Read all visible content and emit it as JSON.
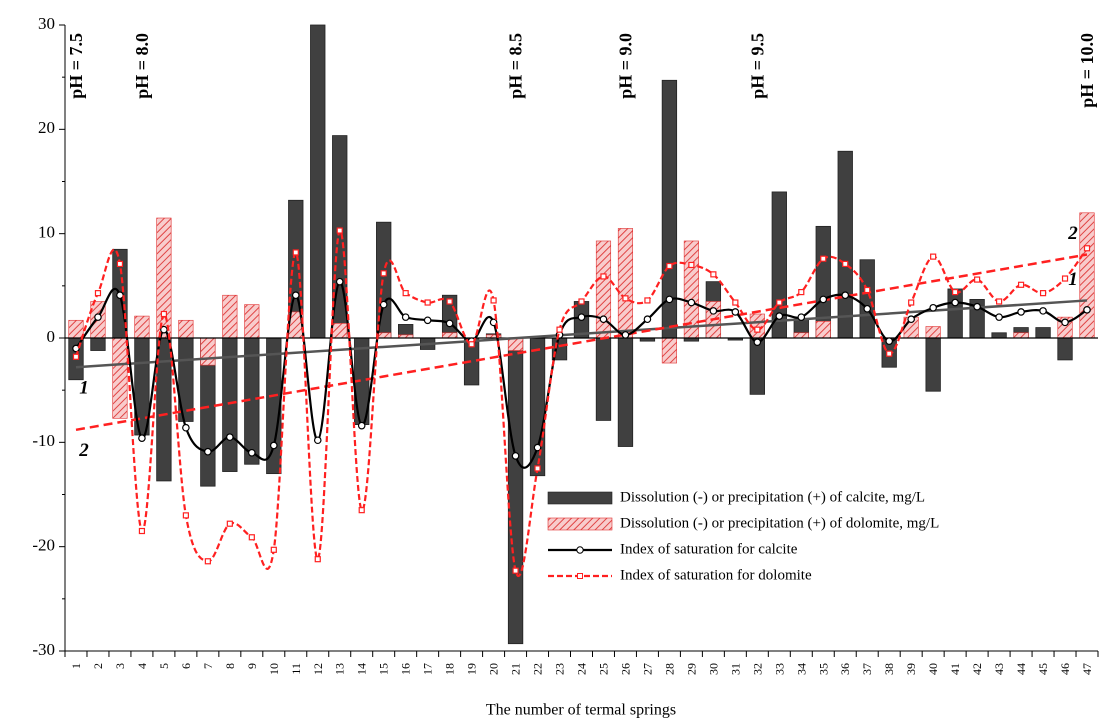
{
  "chart_data": {
    "type": "combo",
    "x_label": "The number of termal springs",
    "categories": [
      "1",
      "2",
      "3",
      "4",
      "5",
      "6",
      "7",
      "8",
      "9",
      "10",
      "11",
      "12",
      "13",
      "14",
      "15",
      "16",
      "17",
      "18",
      "19",
      "20",
      "21",
      "22",
      "23",
      "24",
      "25",
      "26",
      "27",
      "28",
      "29",
      "30",
      "31",
      "32",
      "33",
      "34",
      "35",
      "36",
      "37",
      "38",
      "39",
      "40",
      "41",
      "42",
      "43",
      "44",
      "45",
      "46",
      "47"
    ],
    "ylim": [
      -30,
      30
    ],
    "yticks": [
      -30,
      -20,
      -10,
      0,
      10,
      20,
      30
    ],
    "minor_yticks": [
      -25,
      -15,
      -5,
      5,
      15,
      25
    ],
    "legend": "lower right",
    "series": [
      {
        "name": "Dissolution (-) or precipitation (+) of calcite, mg/L",
        "kind": "bar",
        "color": "#404040",
        "values": [
          -4,
          -1.2,
          8.5,
          -9.3,
          -13.7,
          -8,
          -14.2,
          -12.8,
          -12.1,
          -13,
          13.2,
          30,
          19.4,
          -8.3,
          11.1,
          1.3,
          -1.1,
          4.1,
          -4.5,
          0.4,
          -29.3,
          -13.2,
          -2.1,
          3.5,
          -7.9,
          -10.4,
          -0.3,
          24.7,
          -0.3,
          5.4,
          -0.2,
          -5.4,
          14,
          1.8,
          10.7,
          17.9,
          7.5,
          -2.8,
          0,
          -5.1,
          4.7,
          3.7,
          0.5,
          1,
          1,
          -2.1,
          0
        ]
      },
      {
        "name": "Dissolution (-) or precipitation (+) of dolomite, mg/L",
        "kind": "bar",
        "hatched": true,
        "color": "#e03030",
        "values": [
          1.7,
          3.5,
          -7.7,
          2.1,
          11.5,
          1.7,
          -2.6,
          4.1,
          3.2,
          0,
          2.5,
          0,
          1.4,
          0,
          0.5,
          0.3,
          0,
          0.5,
          0,
          0.3,
          -1.2,
          0,
          0,
          0,
          9.3,
          10.5,
          0,
          -2.4,
          9.3,
          3.5,
          0,
          2.3,
          0,
          0.5,
          1.6,
          0,
          0,
          0,
          2,
          1.1,
          0,
          0,
          0,
          0.5,
          0,
          2,
          12
        ]
      },
      {
        "name": "Index of saturation for calcite",
        "kind": "line",
        "color": "#000000",
        "dash": false,
        "values": [
          -1,
          2,
          4.1,
          -9.6,
          0.8,
          -8.6,
          -10.9,
          -9.5,
          -11,
          -10.3,
          4.1,
          -9.8,
          5.4,
          -8.4,
          3.2,
          2,
          1.7,
          1.4,
          -0.3,
          1.5,
          -11.3,
          -10.5,
          0.3,
          2,
          1.8,
          0.3,
          1.8,
          3.7,
          3.4,
          2.6,
          2.5,
          -0.4,
          2.1,
          2,
          3.7,
          4.1,
          2.8,
          -0.3,
          1.8,
          2.9,
          3.4,
          3,
          2,
          2.5,
          2.6,
          1.5,
          2.7
        ]
      },
      {
        "name": "Index of saturation for dolomite",
        "kind": "line",
        "color": "#ff2020",
        "dash": true,
        "values": [
          -1.8,
          4.3,
          7.1,
          -18.5,
          2.3,
          -17,
          -21.4,
          -17.8,
          -19.1,
          -20.3,
          8.2,
          -21.2,
          10.3,
          -16.5,
          6.2,
          4.3,
          3.4,
          3.5,
          -0.6,
          3.6,
          -22.3,
          -12.5,
          0.8,
          3.5,
          5.9,
          3.8,
          3.6,
          6.9,
          7,
          6.1,
          3.4,
          0.8,
          3.4,
          4.4,
          7.6,
          7.1,
          4.6,
          -1.5,
          3.4,
          7.8,
          4.4,
          5.6,
          3.5,
          5.1,
          4.3,
          5.7,
          8.6
        ]
      }
    ],
    "trendlines": [
      {
        "labels": [
          "1",
          "1"
        ],
        "color": "#555555",
        "dash": false,
        "values": [
          -2.8,
          3.6
        ]
      },
      {
        "labels": [
          "2",
          "2"
        ],
        "color": "#ff2020",
        "dash": true,
        "values": [
          -8.8,
          8
        ]
      }
    ],
    "annotations": [
      {
        "text": "pH = 7.5",
        "category": "1"
      },
      {
        "text": "pH = 8.0",
        "category": "4"
      },
      {
        "text": "pH = 8.5",
        "category": "21"
      },
      {
        "text": "pH = 9.0",
        "category": "26"
      },
      {
        "text": "pH = 9.5",
        "category": "32"
      },
      {
        "text": "pH = 10.0",
        "category": "47"
      }
    ]
  }
}
